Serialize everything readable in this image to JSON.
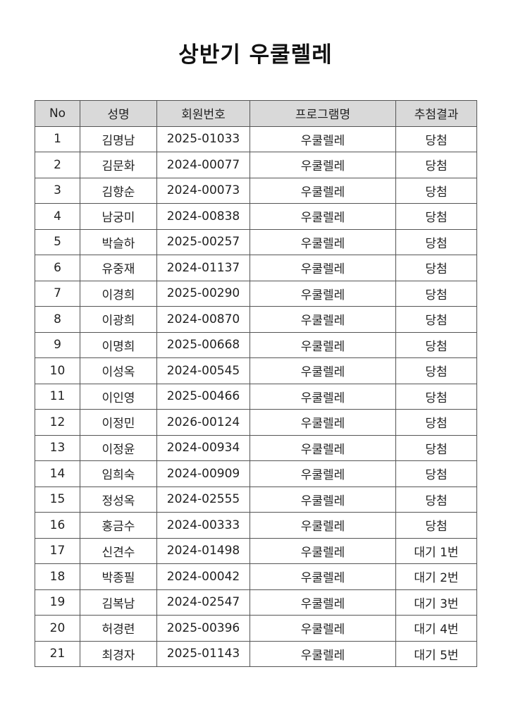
{
  "title": "상반기 우쿨렐레",
  "table": {
    "headers": [
      "No",
      "성명",
      "회원번호",
      "프로그램명",
      "추첨결과"
    ],
    "rows": [
      [
        "1",
        "김명남",
        "2025-01033",
        "우쿨렐레",
        "당첨"
      ],
      [
        "2",
        "김문화",
        "2024-00077",
        "우쿨렐레",
        "당첨"
      ],
      [
        "3",
        "김향순",
        "2024-00073",
        "우쿨렐레",
        "당첨"
      ],
      [
        "4",
        "남궁미",
        "2024-00838",
        "우쿨렐레",
        "당첨"
      ],
      [
        "5",
        "박슬하",
        "2025-00257",
        "우쿨렐레",
        "당첨"
      ],
      [
        "6",
        "유중재",
        "2024-01137",
        "우쿨렐레",
        "당첨"
      ],
      [
        "7",
        "이경희",
        "2025-00290",
        "우쿨렐레",
        "당첨"
      ],
      [
        "8",
        "이광희",
        "2024-00870",
        "우쿨렐레",
        "당첨"
      ],
      [
        "9",
        "이명희",
        "2025-00668",
        "우쿨렐레",
        "당첨"
      ],
      [
        "10",
        "이성옥",
        "2024-00545",
        "우쿨렐레",
        "당첨"
      ],
      [
        "11",
        "이인영",
        "2025-00466",
        "우쿨렐레",
        "당첨"
      ],
      [
        "12",
        "이정민",
        "2026-00124",
        "우쿨렐레",
        "당첨"
      ],
      [
        "13",
        "이정윤",
        "2024-00934",
        "우쿨렐레",
        "당첨"
      ],
      [
        "14",
        "임희숙",
        "2024-00909",
        "우쿨렐레",
        "당첨"
      ],
      [
        "15",
        "정성옥",
        "2024-02555",
        "우쿨렐레",
        "당첨"
      ],
      [
        "16",
        "홍금수",
        "2024-00333",
        "우쿨렐레",
        "당첨"
      ],
      [
        "17",
        "신견수",
        "2024-01498",
        "우쿨렐레",
        "대기 1번"
      ],
      [
        "18",
        "박종필",
        "2024-00042",
        "우쿨렐레",
        "대기 2번"
      ],
      [
        "19",
        "김복남",
        "2024-02547",
        "우쿨렐레",
        "대기 3번"
      ],
      [
        "20",
        "허경련",
        "2025-00396",
        "우쿨렐레",
        "대기 4번"
      ],
      [
        "21",
        "최경자",
        "2025-01143",
        "우쿨렐레",
        "대기 5번"
      ]
    ]
  },
  "colors": {
    "header_bg": "#d9d9d9",
    "border": "#555555"
  }
}
